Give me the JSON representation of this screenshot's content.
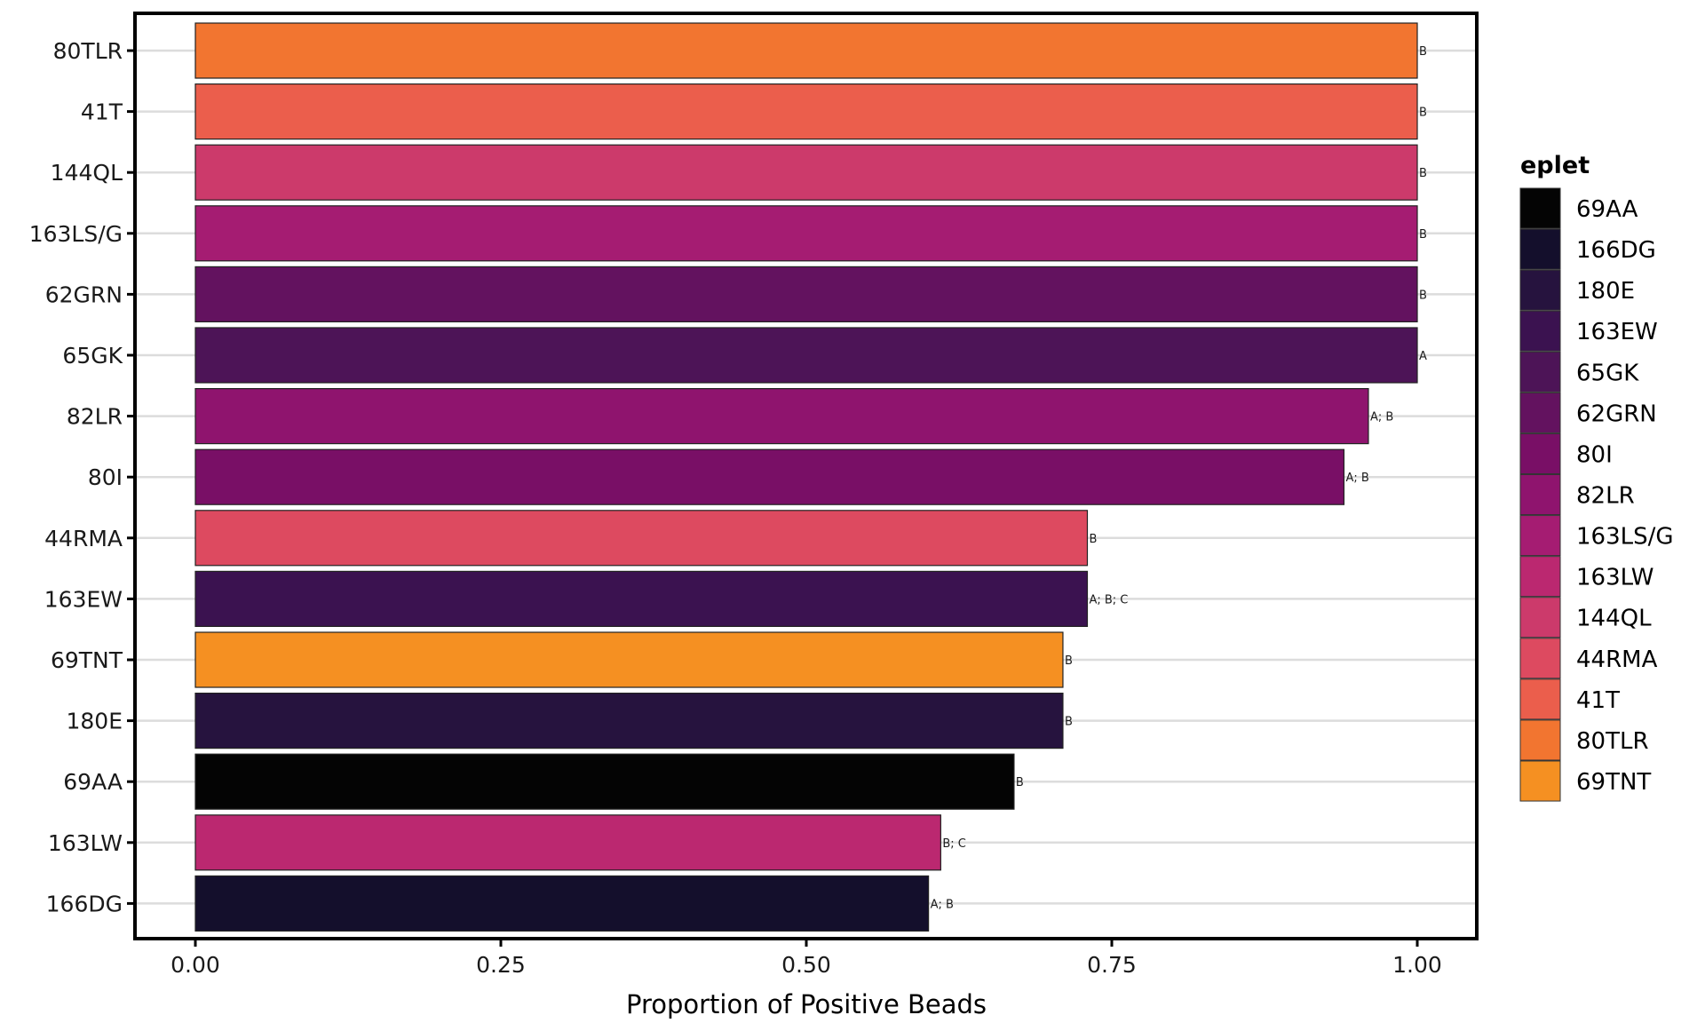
{
  "chart_data": {
    "type": "bar",
    "orientation": "horizontal",
    "title": "",
    "xlabel": "Proportion of Positive Beads",
    "ylabel": "",
    "xlim": [
      -0.05,
      1.05
    ],
    "x_ticks": [
      0,
      0.25,
      0.5,
      0.75,
      1.0
    ],
    "x_tick_labels": [
      "0.00",
      "0.25",
      "0.50",
      "0.75",
      "1.00"
    ],
    "grid": "horizontal major lines",
    "legend_position": "right",
    "legend_title": "eplet",
    "categories": [
      "80TLR",
      "41T",
      "144QL",
      "163LS/G",
      "62GRN",
      "65GK",
      "82LR",
      "80I",
      "44RMA",
      "163EW",
      "69TNT",
      "180E",
      "69AA",
      "163LW",
      "166DG"
    ],
    "values": [
      1.0,
      1.0,
      1.0,
      1.0,
      1.0,
      1.0,
      0.96,
      0.94,
      0.73,
      0.73,
      0.71,
      0.71,
      0.67,
      0.61,
      0.6
    ],
    "bar_labels": [
      "B",
      "B",
      "B",
      "B",
      "B",
      "A",
      "A; B",
      "A; B",
      "B",
      "A; B; C",
      "B",
      "B",
      "B",
      "B; C",
      "A; B"
    ],
    "legend": [
      {
        "label": "69AA",
        "color": "#040404"
      },
      {
        "label": "166DG",
        "color": "#140f2c"
      },
      {
        "label": "180E",
        "color": "#26133e"
      },
      {
        "label": "163EW",
        "color": "#3b1250"
      },
      {
        "label": "65GK",
        "color": "#4d1457"
      },
      {
        "label": "62GRN",
        "color": "#63125f"
      },
      {
        "label": "80I",
        "color": "#790f66"
      },
      {
        "label": "82LR",
        "color": "#8f146e"
      },
      {
        "label": "163LS/G",
        "color": "#a51c72"
      },
      {
        "label": "163LW",
        "color": "#bb2870"
      },
      {
        "label": "144QL",
        "color": "#cc3a6b"
      },
      {
        "label": "44RMA",
        "color": "#dd4a60"
      },
      {
        "label": "41T",
        "color": "#eb5e4c"
      },
      {
        "label": "80TLR",
        "color": "#f27530"
      },
      {
        "label": "69TNT",
        "color": "#f59022"
      }
    ]
  }
}
